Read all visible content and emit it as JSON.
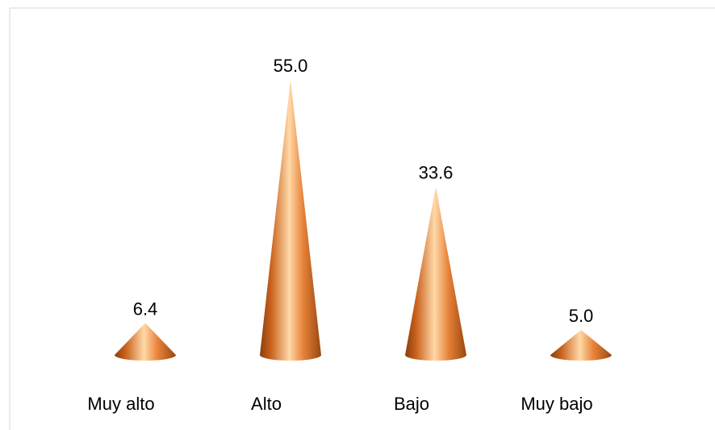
{
  "chart_data": {
    "type": "bar",
    "bar_shape": "cone",
    "categories": [
      "Muy alto",
      "Alto",
      "Bajo",
      "Muy bajo"
    ],
    "values": [
      6.4,
      55.0,
      33.6,
      5.0
    ],
    "data_labels": [
      "6.4",
      "55.0",
      "33.6",
      "5.0"
    ],
    "title": "",
    "xlabel": "",
    "ylabel": "",
    "ylim": [
      0,
      60
    ],
    "grid": false,
    "legend": "none",
    "colors": {
      "cone_dark": "#8a3f0b",
      "cone_mid": "#e07a2a",
      "cone_light": "#ffd9a8",
      "frame": "#d9d9d9"
    }
  }
}
